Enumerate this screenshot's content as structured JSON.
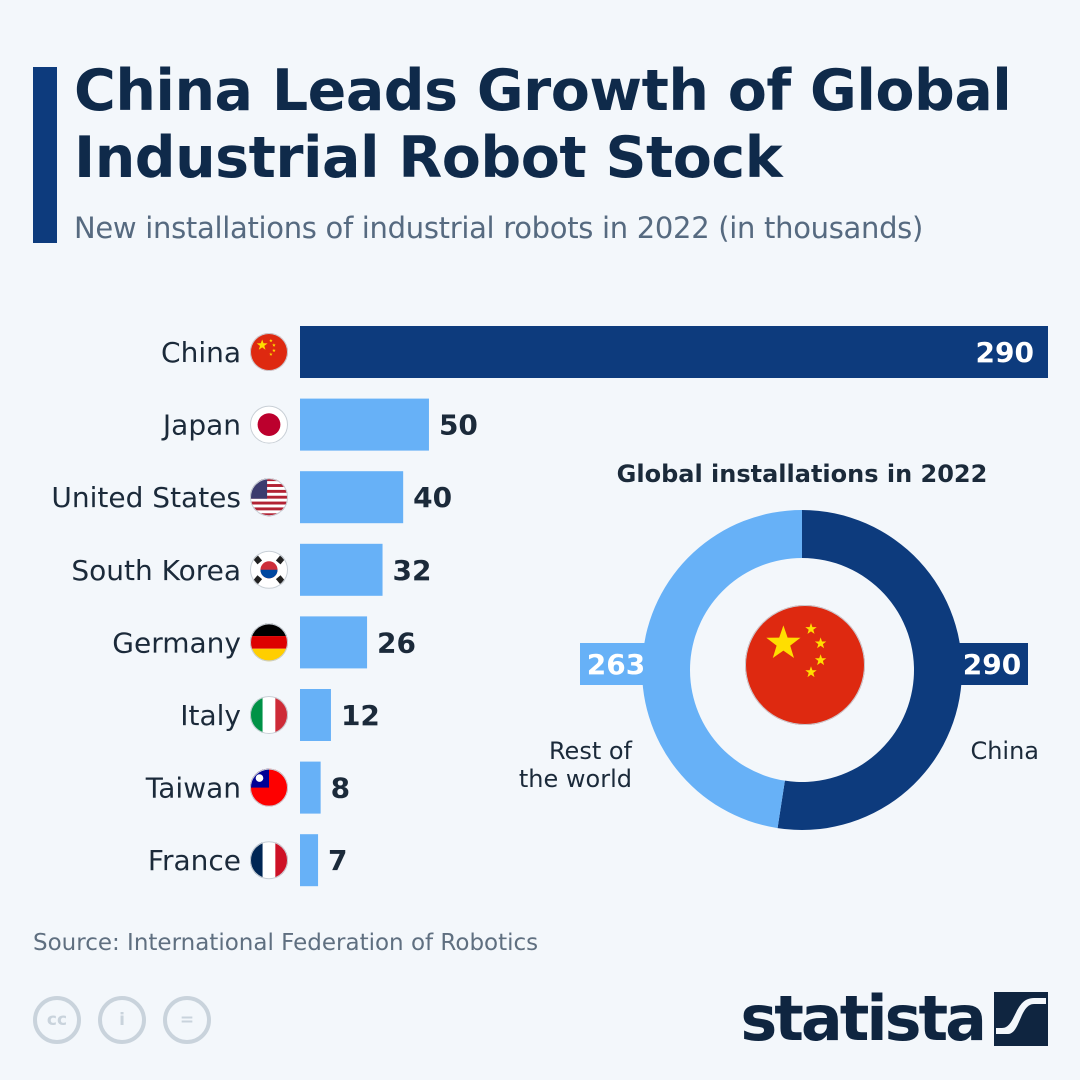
{
  "title": "China Leads Growth of Global Industrial Robot Stock",
  "subtitle": "New installations of industrial robots in 2022 (in thousands)",
  "source": "Source: International Federation of Robotics",
  "brand": "statista",
  "colors": {
    "dark_blue": "#0d3b7d",
    "light_blue": "#67b1f7",
    "background": "#f3f7fb"
  },
  "chart_data": [
    {
      "type": "bar",
      "orientation": "horizontal",
      "categories": [
        "China",
        "Japan",
        "United States",
        "South Korea",
        "Germany",
        "Italy",
        "Taiwan",
        "France"
      ],
      "flags": [
        "flag-china",
        "flag-japan",
        "flag-usa",
        "flag-south-korea",
        "flag-germany",
        "flag-italy",
        "flag-taiwan",
        "flag-france"
      ],
      "values": [
        290,
        50,
        40,
        32,
        26,
        12,
        8,
        7
      ],
      "highlight": "China",
      "xlim": [
        0,
        290
      ],
      "grid": false
    },
    {
      "type": "pie",
      "variant": "donut",
      "title": "Global installations in 2022",
      "slices": [
        {
          "label": "China",
          "value": 290,
          "color": "#0d3b7d"
        },
        {
          "label": "Rest of the world",
          "value": 263,
          "color": "#67b1f7"
        }
      ],
      "center_icon": "flag-china"
    }
  ]
}
